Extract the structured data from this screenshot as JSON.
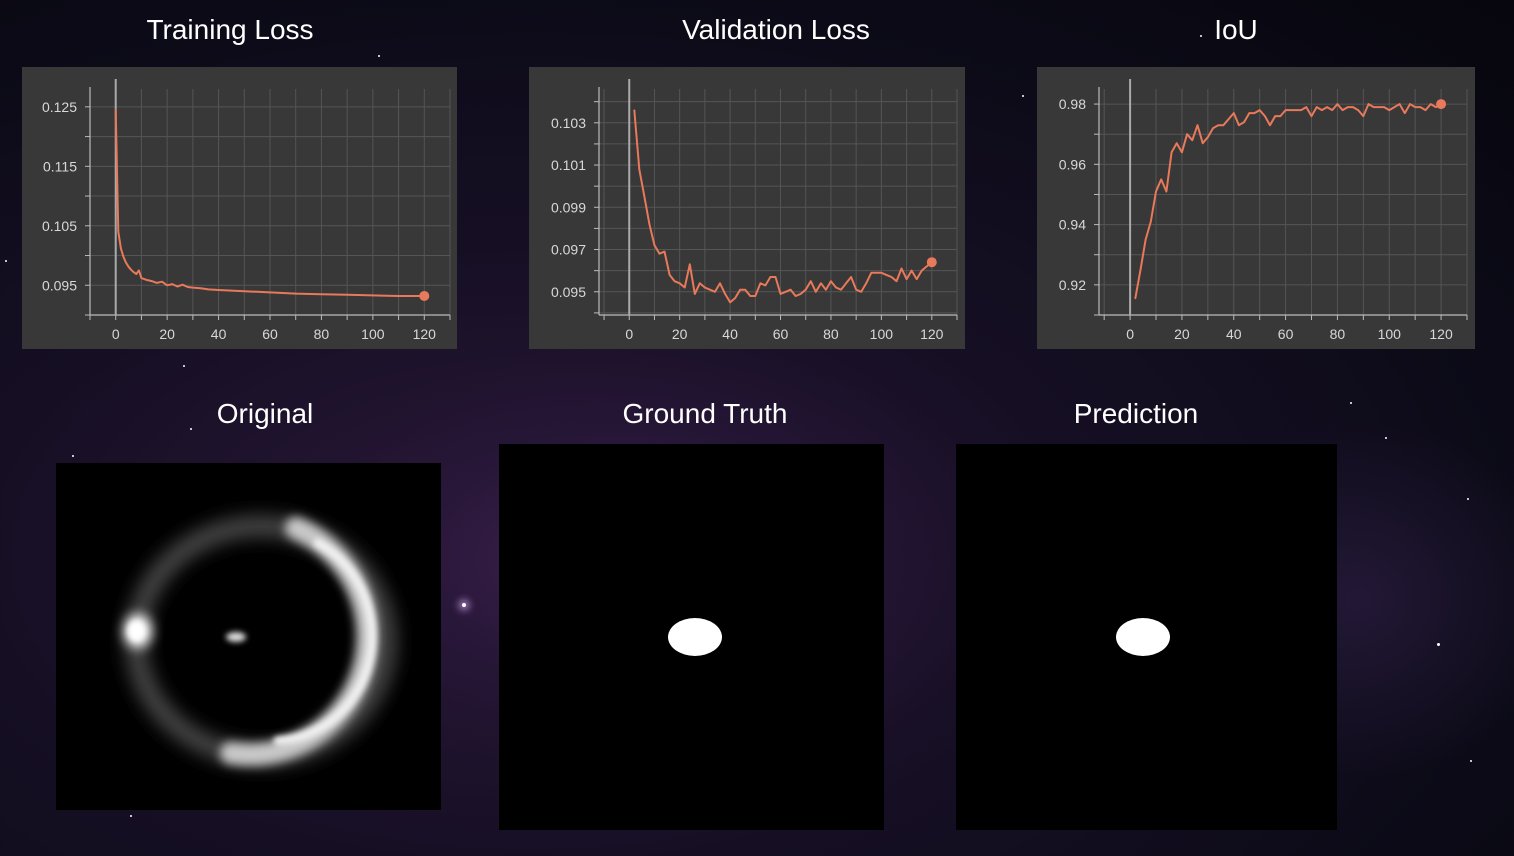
{
  "titles": {
    "training_loss": "Training Loss",
    "validation_loss": "Validation Loss",
    "iou": "IoU",
    "original": "Original",
    "ground_truth": "Ground Truth",
    "prediction": "Prediction"
  },
  "colors": {
    "series": "#e8795a",
    "panel": "#383838",
    "grid": "#555555",
    "axis": "#bbbbbb",
    "tick_label": "#d8d8d8"
  },
  "chart_data": [
    {
      "type": "line",
      "title": "Training Loss",
      "xlim": [
        -10,
        130
      ],
      "ylim": [
        0.09,
        0.128
      ],
      "xticks": [
        0,
        20,
        40,
        60,
        80,
        100,
        120
      ],
      "yticks": [
        0.095,
        0.105,
        0.115,
        0.125
      ],
      "ytick_labels": [
        "0.095",
        "0.105",
        "0.115",
        "0.125"
      ],
      "grid": true,
      "x": [
        0,
        1,
        2,
        3,
        4,
        5,
        6,
        7,
        8,
        9,
        10,
        12,
        14,
        16,
        18,
        20,
        22,
        24,
        26,
        28,
        30,
        33,
        36,
        40,
        45,
        50,
        55,
        60,
        70,
        80,
        90,
        100,
        110,
        120
      ],
      "y": [
        0.1245,
        0.104,
        0.1012,
        0.0998,
        0.0988,
        0.0981,
        0.0976,
        0.0972,
        0.0969,
        0.0975,
        0.0962,
        0.0959,
        0.0957,
        0.0954,
        0.0956,
        0.095,
        0.0952,
        0.0948,
        0.0951,
        0.0947,
        0.0946,
        0.0945,
        0.0943,
        0.0942,
        0.0941,
        0.094,
        0.0939,
        0.0938,
        0.0936,
        0.0935,
        0.0934,
        0.0933,
        0.0932,
        0.0932
      ],
      "last_marker": true
    },
    {
      "type": "line",
      "title": "Validation Loss",
      "xlim": [
        -12,
        130
      ],
      "ylim": [
        0.0939,
        0.1046
      ],
      "xticks": [
        0,
        20,
        40,
        60,
        80,
        100,
        120
      ],
      "yticks": [
        0.095,
        0.097,
        0.099,
        0.101,
        0.103
      ],
      "ytick_labels": [
        "0.095",
        "0.097",
        "0.099",
        "0.101",
        "0.103"
      ],
      "grid": true,
      "x": [
        2,
        4,
        6,
        8,
        10,
        12,
        14,
        16,
        18,
        20,
        22,
        24,
        26,
        28,
        30,
        32,
        34,
        36,
        38,
        40,
        42,
        44,
        46,
        48,
        50,
        52,
        54,
        56,
        58,
        60,
        62,
        64,
        66,
        68,
        70,
        72,
        74,
        76,
        78,
        80,
        82,
        84,
        86,
        88,
        90,
        92,
        94,
        96,
        98,
        100,
        102,
        104,
        106,
        108,
        110,
        112,
        114,
        116,
        118,
        120
      ],
      "y": [
        0.1036,
        0.1008,
        0.0995,
        0.0982,
        0.0972,
        0.0968,
        0.0969,
        0.0958,
        0.0955,
        0.0954,
        0.0952,
        0.0963,
        0.0949,
        0.0954,
        0.0952,
        0.0951,
        0.095,
        0.0954,
        0.0949,
        0.0945,
        0.0947,
        0.0951,
        0.0951,
        0.0948,
        0.0948,
        0.0954,
        0.0953,
        0.0957,
        0.0957,
        0.0949,
        0.095,
        0.0951,
        0.0948,
        0.0949,
        0.0951,
        0.0955,
        0.095,
        0.0954,
        0.0951,
        0.0955,
        0.0952,
        0.0951,
        0.0954,
        0.0957,
        0.0951,
        0.095,
        0.0954,
        0.0959,
        0.0959,
        0.0959,
        0.0958,
        0.0957,
        0.0955,
        0.0961,
        0.0956,
        0.096,
        0.0956,
        0.096,
        0.0962,
        0.0964
      ],
      "last_marker": true
    },
    {
      "type": "line",
      "title": "IoU",
      "xlim": [
        -12,
        130
      ],
      "ylim": [
        0.91,
        0.985
      ],
      "xticks": [
        0,
        20,
        40,
        60,
        80,
        100,
        120
      ],
      "yticks": [
        0.92,
        0.94,
        0.96,
        0.98
      ],
      "ytick_labels": [
        "0.92",
        "0.94",
        "0.96",
        "0.98"
      ],
      "grid": true,
      "x": [
        2,
        4,
        6,
        8,
        10,
        12,
        14,
        16,
        18,
        20,
        22,
        24,
        26,
        28,
        30,
        32,
        34,
        36,
        38,
        40,
        42,
        44,
        46,
        48,
        50,
        52,
        54,
        56,
        58,
        60,
        62,
        64,
        66,
        68,
        70,
        72,
        74,
        76,
        78,
        80,
        82,
        84,
        86,
        88,
        90,
        92,
        94,
        96,
        98,
        100,
        102,
        104,
        106,
        108,
        110,
        112,
        114,
        116,
        118,
        120
      ],
      "y": [
        0.9155,
        0.925,
        0.935,
        0.941,
        0.951,
        0.955,
        0.951,
        0.964,
        0.967,
        0.964,
        0.97,
        0.968,
        0.973,
        0.967,
        0.969,
        0.972,
        0.973,
        0.973,
        0.975,
        0.977,
        0.973,
        0.974,
        0.977,
        0.977,
        0.978,
        0.976,
        0.973,
        0.976,
        0.976,
        0.978,
        0.978,
        0.978,
        0.978,
        0.979,
        0.976,
        0.979,
        0.978,
        0.979,
        0.978,
        0.98,
        0.978,
        0.979,
        0.979,
        0.978,
        0.976,
        0.98,
        0.979,
        0.979,
        0.979,
        0.978,
        0.979,
        0.98,
        0.977,
        0.98,
        0.979,
        0.979,
        0.978,
        0.98,
        0.979,
        0.98
      ],
      "last_marker": true
    }
  ],
  "images": {
    "original": "gravitational-lens-ring-image",
    "ground_truth": "ground-truth-mask",
    "prediction": "predicted-mask"
  }
}
